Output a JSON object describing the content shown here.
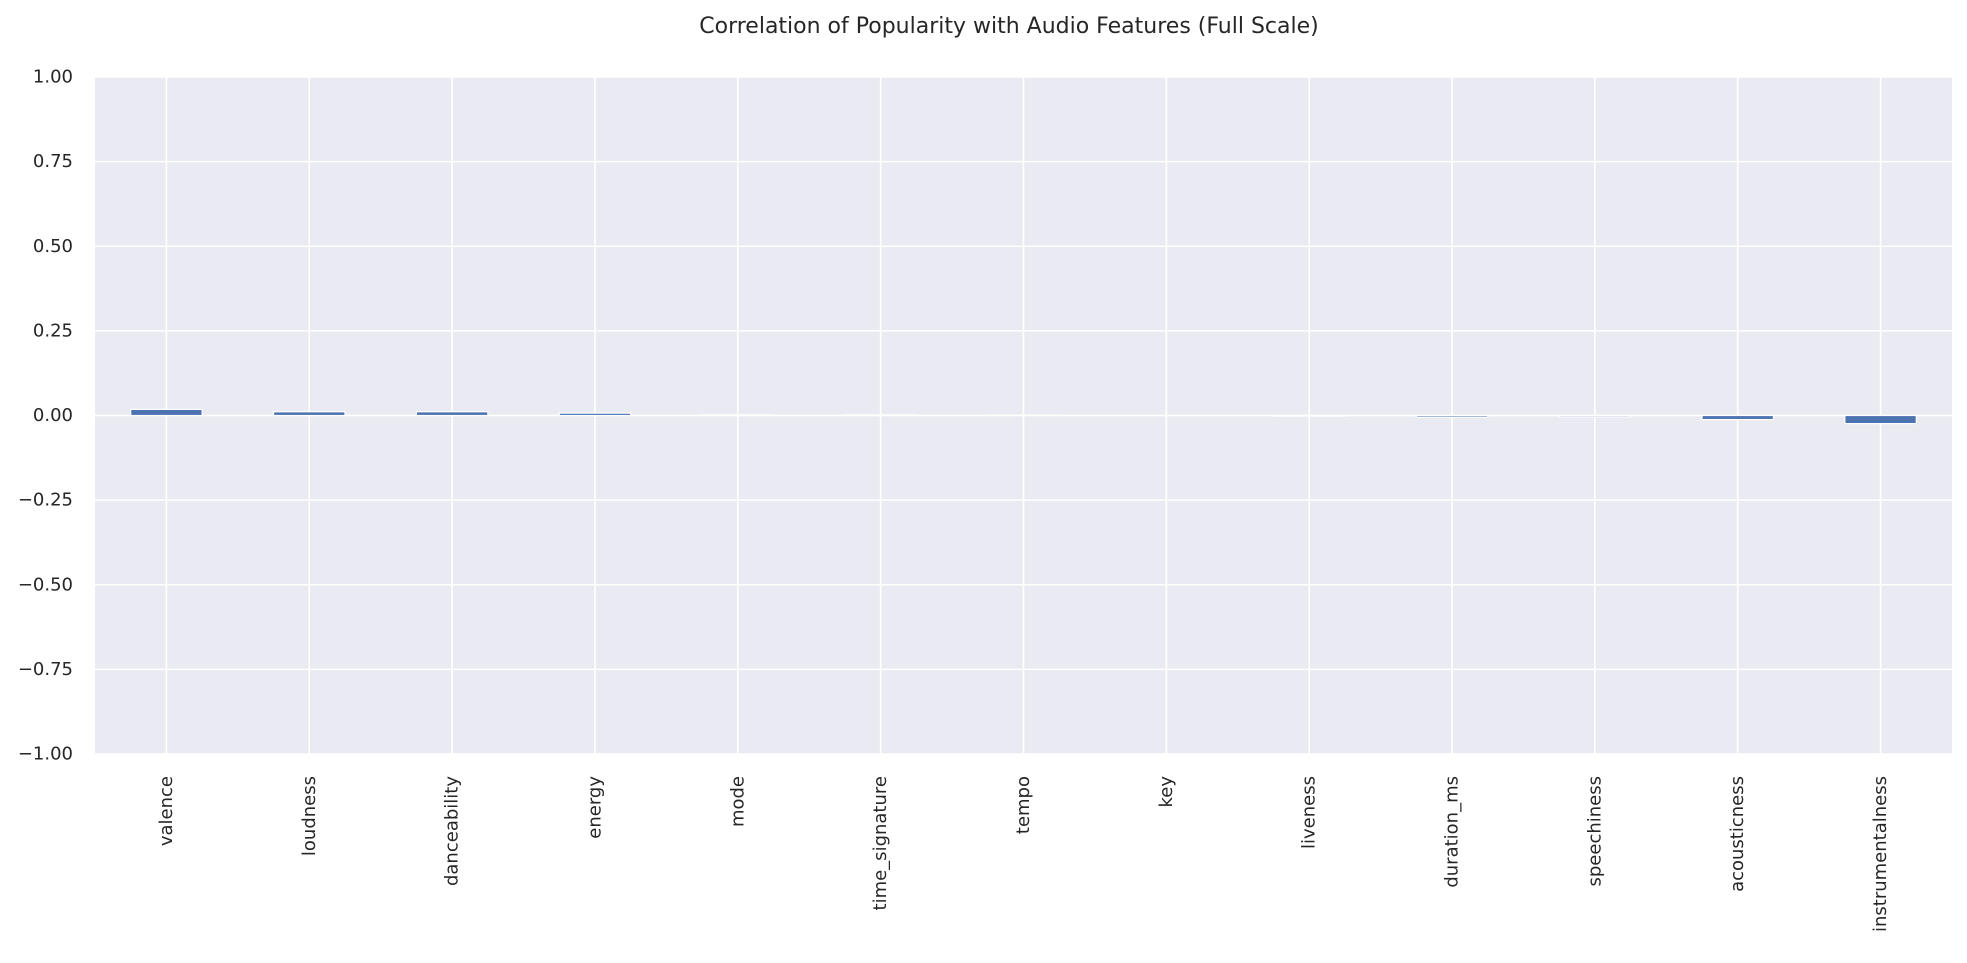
{
  "chart_data": {
    "type": "bar",
    "title": "Correlation of Popularity with Audio Features (Full Scale)",
    "xlabel": "",
    "ylabel": "",
    "categories": [
      "valence",
      "loudness",
      "danceability",
      "energy",
      "mode",
      "time_signature",
      "tempo",
      "key",
      "liveness",
      "duration_ms",
      "speechiness",
      "acousticness",
      "instrumentalness"
    ],
    "values": [
      0.018,
      0.011,
      0.011,
      0.007,
      0.002,
      0.002,
      0.001,
      0.0,
      -0.002,
      -0.005,
      -0.004,
      -0.012,
      -0.024
    ],
    "ylim": [
      -1.0,
      1.0
    ],
    "yticks": [
      "1.00",
      "0.75",
      "0.50",
      "0.25",
      "0.00",
      "−0.25",
      "−0.50",
      "−0.75",
      "−1.00"
    ],
    "ytick_values": [
      1.0,
      0.75,
      0.5,
      0.25,
      0.0,
      -0.25,
      -0.5,
      -0.75,
      -1.0
    ],
    "grid": true,
    "legend": "none",
    "colors": {
      "bar": "#4c72b0",
      "plot_background": "#eaeaf2",
      "grid": "#ffffff",
      "text": "#262626"
    }
  }
}
